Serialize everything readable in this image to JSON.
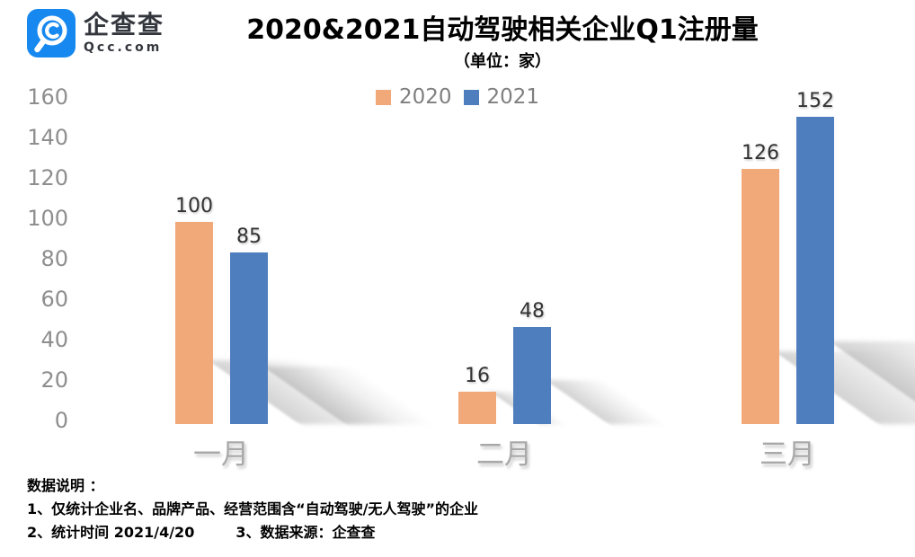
{
  "brand": {
    "name": "企查查",
    "domain": "Qcc.com",
    "logo_bg_color": "#1788EF",
    "logo_icon": "qcc-magnifier-icon",
    "text_color": "#33373D"
  },
  "footnotes": {
    "heading": "数据说明 ：",
    "note1": "1、仅统计企业名、品牌产品、经营范围含“自动驾驶/无人驾驶”的企业",
    "note2": "2、统计时间 2021/4/20",
    "note3": "3、数据来源：企查查"
  },
  "chart_data": {
    "type": "bar",
    "title": "2020&2021自动驾驶相关企业Q1注册量",
    "unit_label": "（单位：家）",
    "categories": [
      "一月",
      "二月",
      "三月"
    ],
    "series": [
      {
        "name": "2020",
        "color": "#F2A97A",
        "values": [
          100,
          16,
          126
        ]
      },
      {
        "name": "2021",
        "color": "#4E7EBE",
        "values": [
          85,
          48,
          152
        ]
      }
    ],
    "xlabel": "",
    "ylabel": "",
    "ylim": [
      0,
      160
    ],
    "ytick_step": 20,
    "yticks": [
      0,
      20,
      40,
      60,
      80,
      100,
      120,
      140,
      160
    ],
    "grid": false,
    "legend_position": "top",
    "value_labels": true,
    "axis_label_color": "#8E8E8E",
    "category_label_color": "#A9A9A9",
    "value_label_color": "#333333",
    "legend_text_color": "#7F7F7F"
  }
}
